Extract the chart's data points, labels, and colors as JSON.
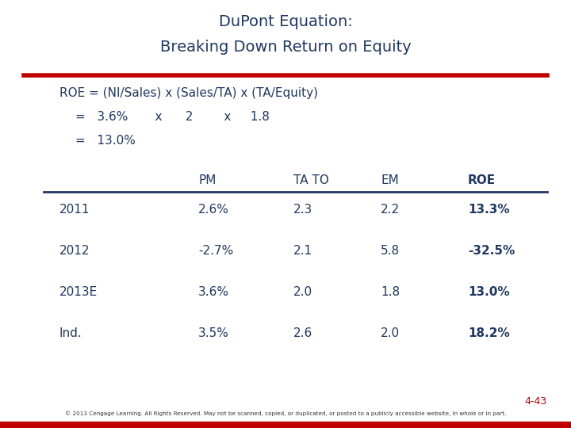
{
  "title_line1": "DuPont Equation:",
  "title_line2": "Breaking Down Return on Equity",
  "title_color": "#1F3864",
  "red_line_color": "#C00000",
  "equation_line1": "ROE = (NI/Sales) x (Sales/TA) x (TA/Equity)",
  "equation_line2": "=   3.6%       x      2        x     1.8",
  "equation_line3": "=   13.0%",
  "table_headers": [
    "",
    "PM",
    "TA TO",
    "EM",
    "ROE"
  ],
  "table_rows": [
    [
      "2011",
      "2.6%",
      "2.3",
      "2.2",
      "13.3%"
    ],
    [
      "2012",
      "-2.7%",
      "2.1",
      "5.8",
      "-32.5%"
    ],
    [
      "2013E",
      "3.6%",
      "2.0",
      "1.8",
      "13.0%"
    ],
    [
      "Ind.",
      "3.5%",
      "2.6",
      "2.0",
      "18.2%"
    ]
  ],
  "slide_number": "4-43",
  "footer_text": "© 2013 Cengage Learning. All Rights Reserved. May not be scanned, copied, or duplicated, or posted to a publicly accessible website, in whole or in part.",
  "body_color": "#1F3864",
  "background_color": "#FFFFFF",
  "title_fontsize": 14,
  "eq_fontsize": 11,
  "table_fontsize": 11
}
